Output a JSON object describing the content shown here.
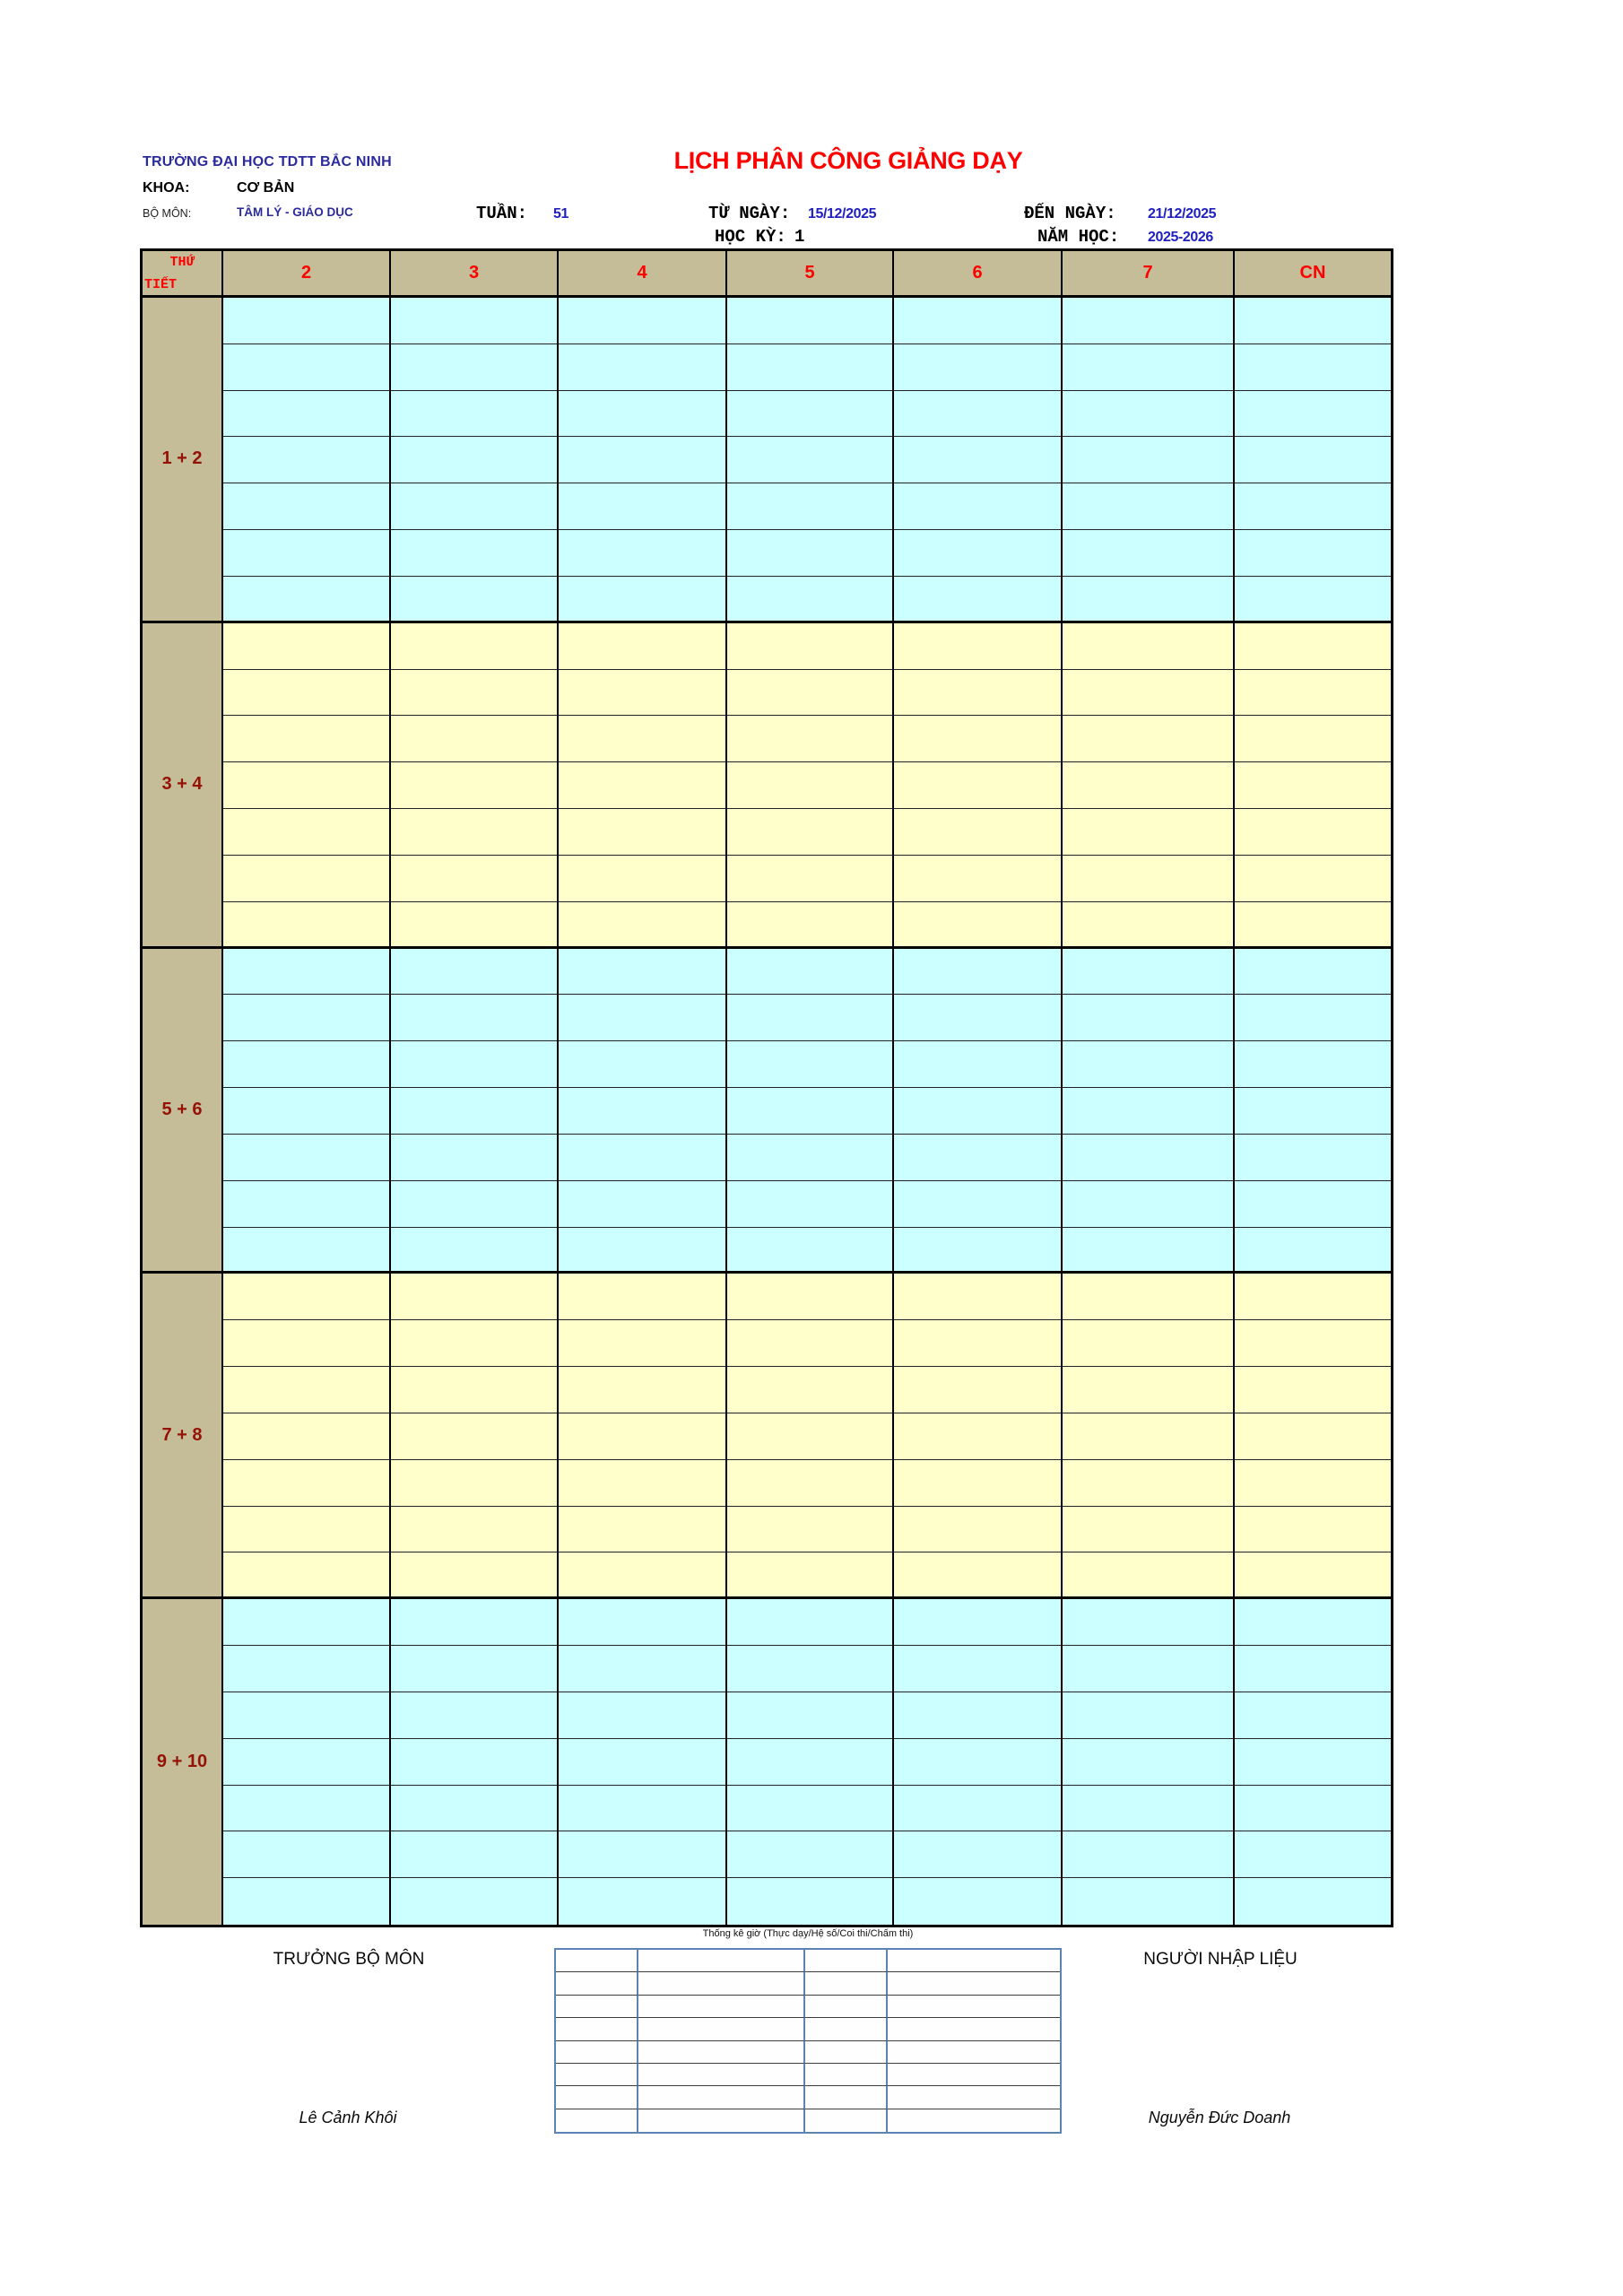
{
  "header": {
    "university": "TRƯỜNG ĐẠI HỌC TDTT BẮC NINH",
    "khoa_label": "KHOA:",
    "khoa_value": "CƠ BẢN",
    "bo_mon_label": "BỘ MÔN:",
    "bo_mon_value": "TÂM LÝ - GIÁO DỤC",
    "tuan_label": "TUẦN:",
    "tuan_value": "51",
    "title": "LỊCH PHÂN CÔNG GIẢNG DẠY",
    "tu_ngay_label": "TỪ NGÀY:",
    "tu_ngay_value": "15/12/2025",
    "den_ngay_label": "ĐẾN NGÀY:",
    "den_ngay_value": "21/12/2025",
    "hoc_ky_label": "HỌC KỲ:",
    "hoc_ky_value": "1",
    "nam_hoc_label": "NĂM HỌC:",
    "nam_hoc_value": "2025-2026"
  },
  "schedule": {
    "corner_line1": "THỨ",
    "corner_line2": "TIẾT",
    "day_columns": [
      "2",
      "3",
      "4",
      "5",
      "6",
      "7",
      "CN"
    ],
    "rows_per_group": 7,
    "period_groups": [
      {
        "label": "1 + 2",
        "bg": "#ccffff"
      },
      {
        "label": "3 + 4",
        "bg": "#ffffcc"
      },
      {
        "label": "5 + 6",
        "bg": "#ccffff"
      },
      {
        "label": "7 + 8",
        "bg": "#ffffcc"
      },
      {
        "label": "9 + 10",
        "bg": "#ccffff"
      }
    ],
    "cells_all_empty": true
  },
  "footer": {
    "stats_caption": "Thống kê giờ (Thực dạy/Hệ số/Coi thi/Chấm thi)",
    "stats_table": {
      "rows": 8,
      "columns": 4,
      "cells_all_empty": true
    },
    "left_role": "TRƯỞNG BỘ MÔN",
    "right_role": "NGƯỜI NHẬP LIỆU",
    "left_name": "Lê Cảnh Khôi",
    "right_name": "Nguyễn Đức Doanh"
  },
  "colors": {
    "header_band_tan": "#c5bd98",
    "group_cyan": "#ccffff",
    "group_yellow": "#ffffcc",
    "title_red": "#ff0000",
    "day_number_red": "#fe0000",
    "group_label_dark_red": "#941206",
    "value_blue": "#2020c0",
    "org_navy": "#2b2b9e",
    "stats_border_blue": "#5b84b5"
  }
}
